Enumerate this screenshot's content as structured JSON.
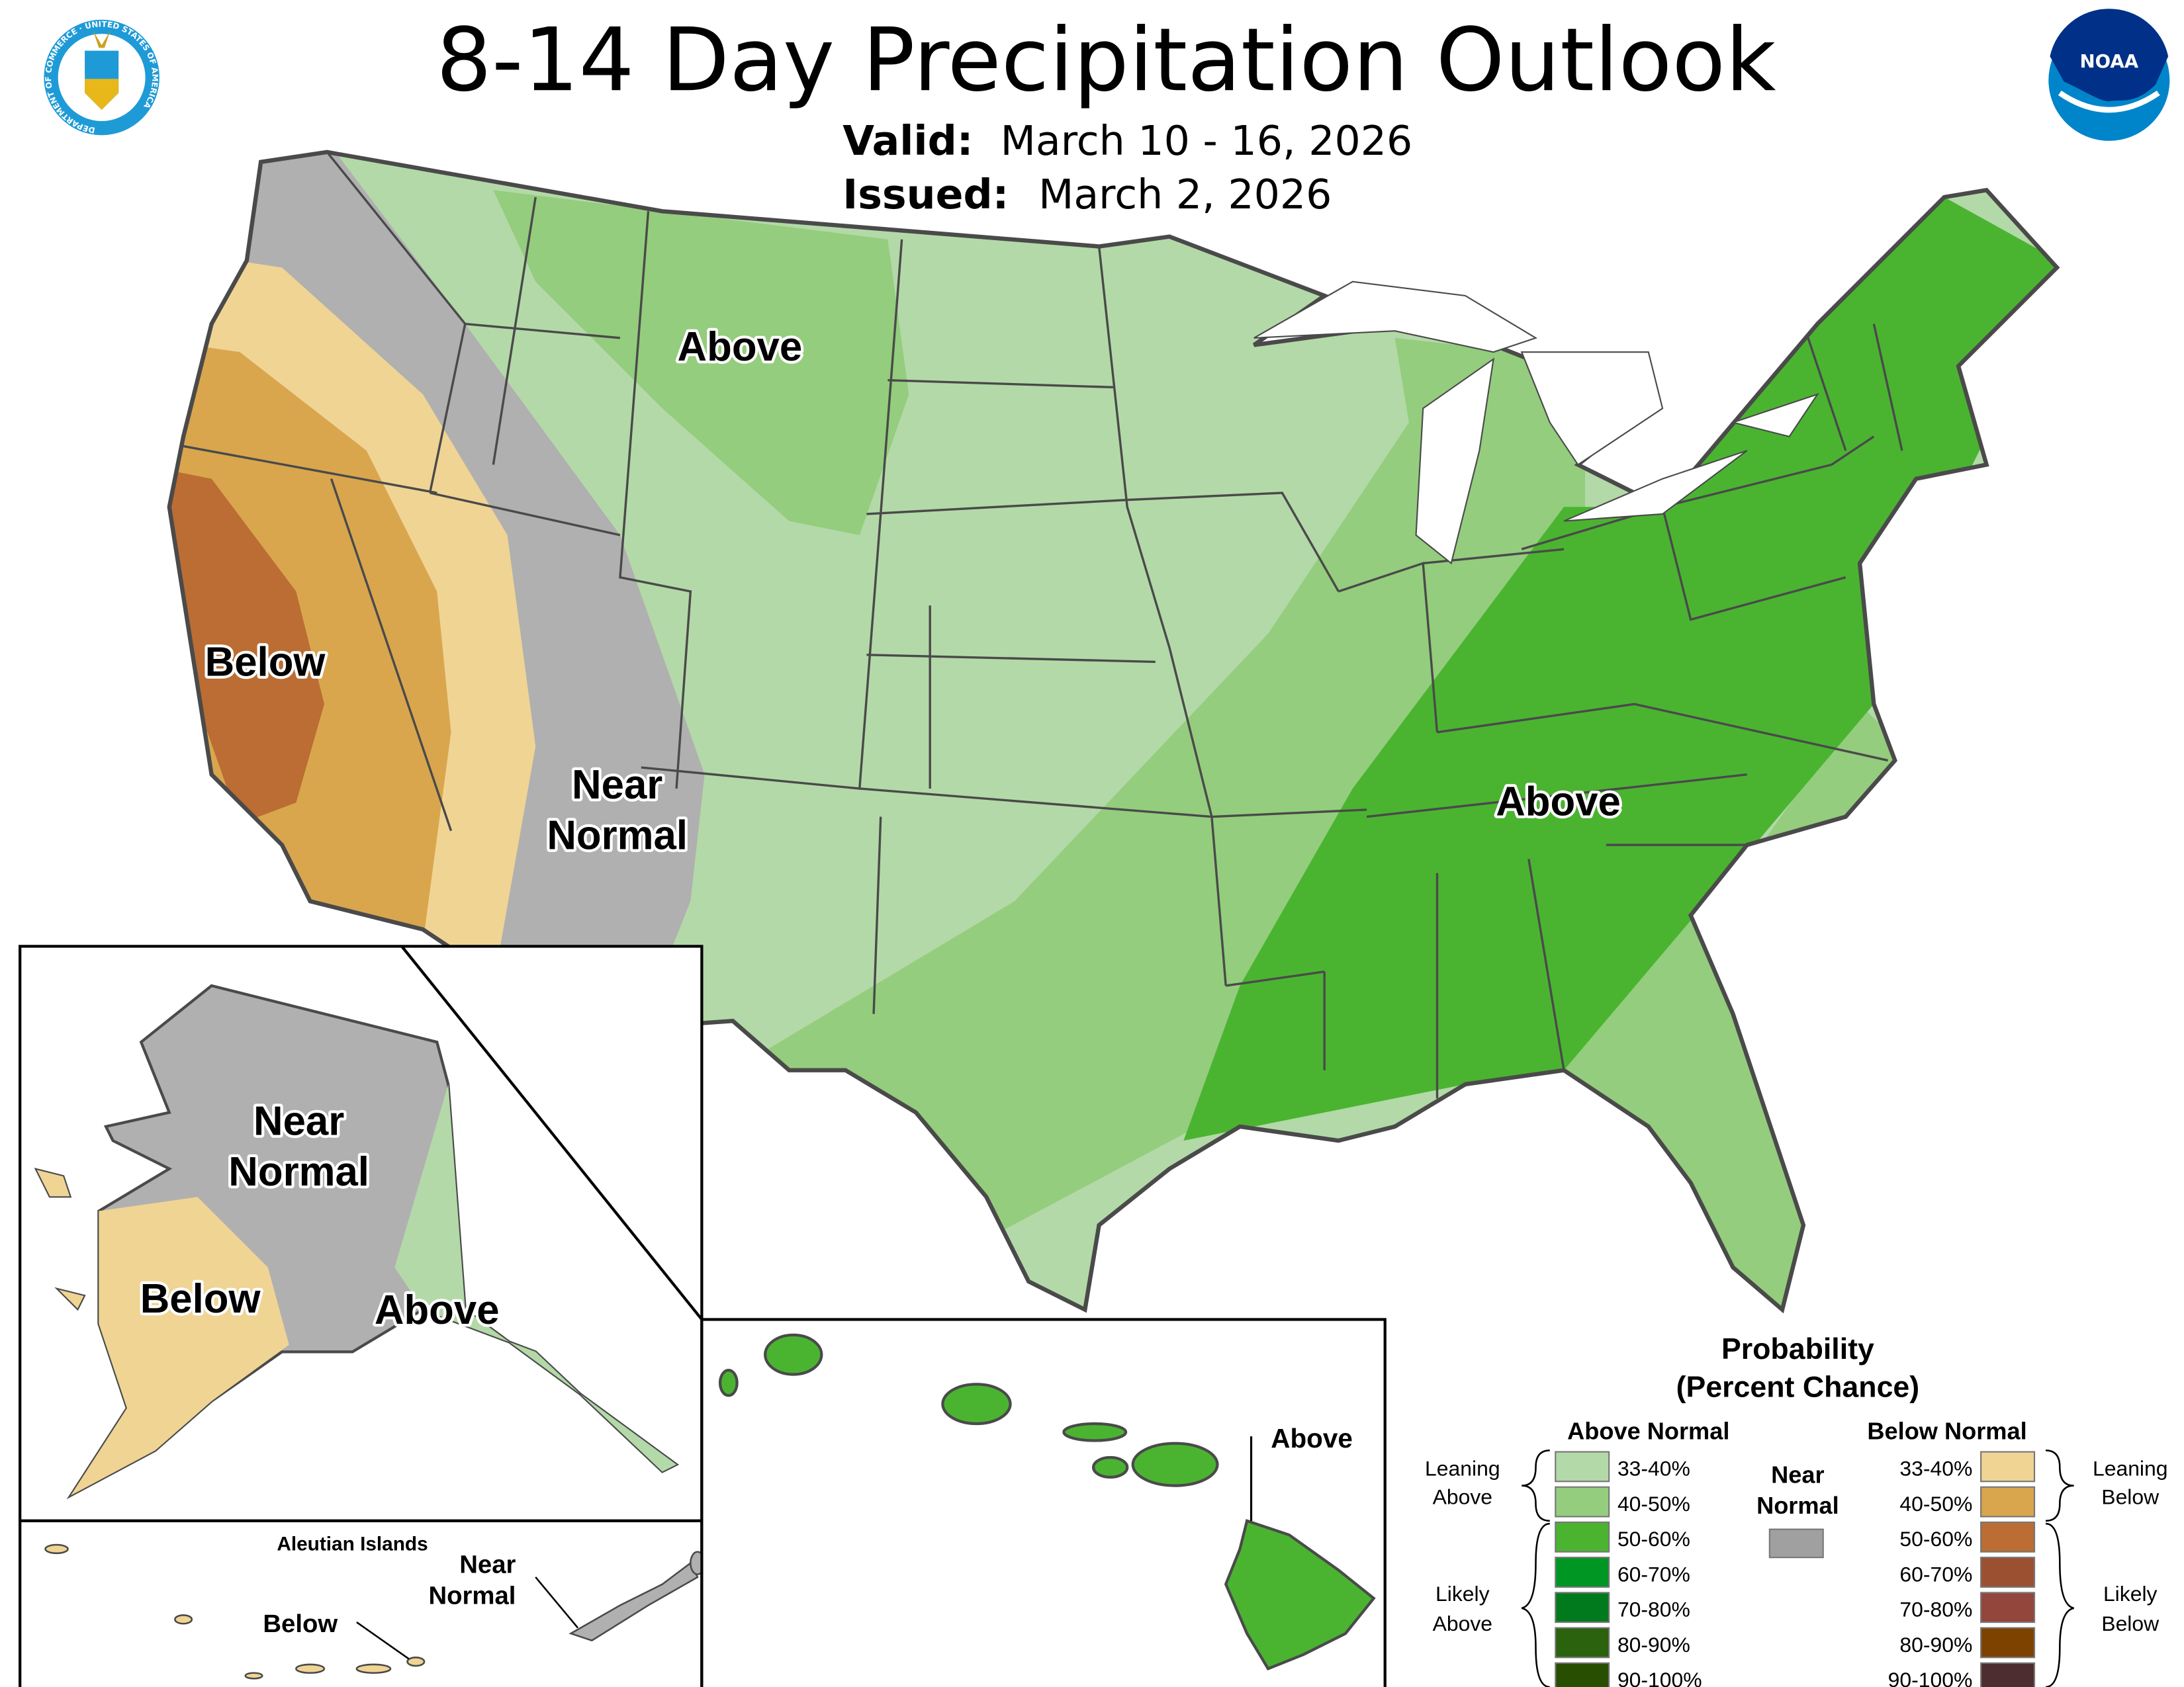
{
  "header": {
    "title": "8-14 Day Precipitation Outlook",
    "valid_label": "Valid:",
    "valid_value": "March 10 - 16, 2026",
    "issued_label": "Issued:",
    "issued_value": "March 2, 2026",
    "left_logo": "department-of-commerce-seal",
    "left_logo_text": "DEPARTMENT OF COMMERCE · UNITED STATES OF AMERICA",
    "right_logo": "noaa-logo",
    "right_logo_text": "NOAA"
  },
  "map_labels": {
    "conus_above_north": "Above",
    "conus_below_west": "Below",
    "conus_near_1": "Near",
    "conus_near_2": "Normal",
    "conus_above_east": "Above",
    "ak_near_1": "Near",
    "ak_near_2": "Normal",
    "ak_below": "Below",
    "ak_above": "Above",
    "aleutian_title": "Aleutian Islands",
    "aleutian_near_1": "Near",
    "aleutian_near_2": "Normal",
    "aleutian_below": "Below",
    "hawaii_above": "Above"
  },
  "legend": {
    "title_1": "Probability",
    "title_2": "(Percent Chance)",
    "above_header": "Above Normal",
    "below_header": "Below Normal",
    "near_1": "Near",
    "near_2": "Normal",
    "near_color": "#a0a0a0",
    "leaning_above_1": "Leaning",
    "leaning_above_2": "Above",
    "likely_above_1": "Likely",
    "likely_above_2": "Above",
    "leaning_below_1": "Leaning",
    "leaning_below_2": "Below",
    "likely_below_1": "Likely",
    "likely_below_2": "Below",
    "above": [
      {
        "range": "33-40%",
        "color": "#b3d9a8"
      },
      {
        "range": "40-50%",
        "color": "#94cd7d"
      },
      {
        "range": "50-60%",
        "color": "#4ab431"
      },
      {
        "range": "60-70%",
        "color": "#009624"
      },
      {
        "range": "70-80%",
        "color": "#007a1d"
      },
      {
        "range": "80-90%",
        "color": "#2a620e"
      },
      {
        "range": "90-100%",
        "color": "#284f01"
      }
    ],
    "below": [
      {
        "range": "33-40%",
        "color": "#f0d494"
      },
      {
        "range": "40-50%",
        "color": "#d9a64e"
      },
      {
        "range": "50-60%",
        "color": "#bb6d33"
      },
      {
        "range": "60-70%",
        "color": "#9b5031"
      },
      {
        "range": "70-80%",
        "color": "#93463b"
      },
      {
        "range": "80-90%",
        "color": "#7d4200"
      },
      {
        "range": "90-100%",
        "color": "#4d2d2f"
      }
    ]
  }
}
